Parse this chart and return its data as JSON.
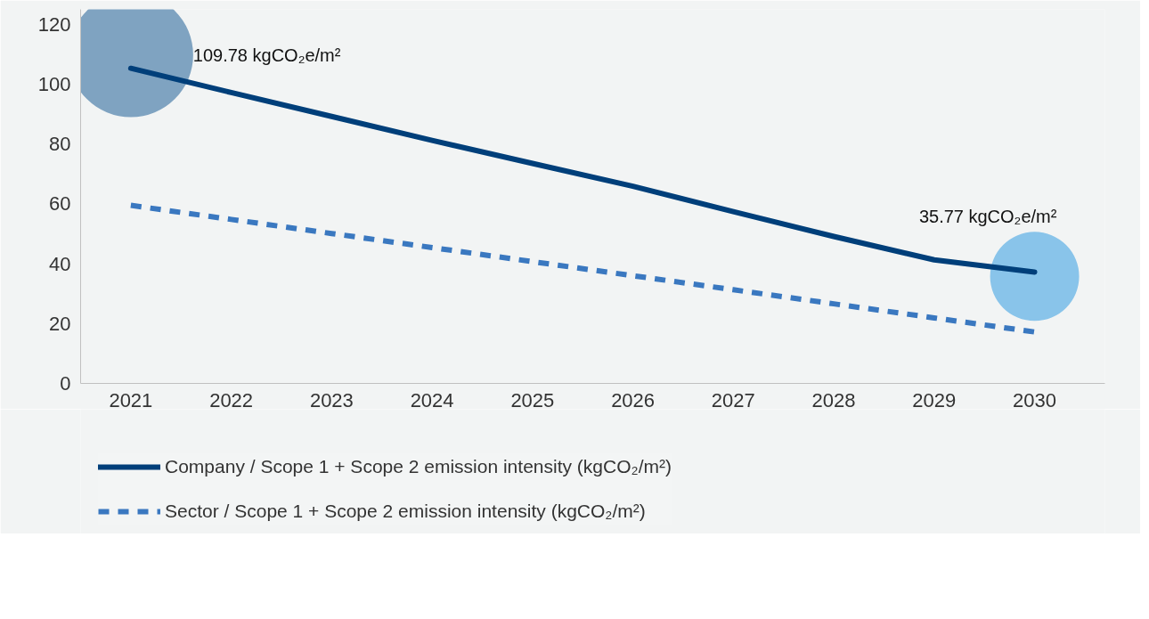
{
  "chart_data": {
    "type": "line",
    "categories": [
      "2021",
      "2022",
      "2023",
      "2024",
      "2025",
      "2026",
      "2027",
      "2028",
      "2029",
      "2030"
    ],
    "ylim": [
      0,
      125
    ],
    "yticks": [
      0,
      20,
      40,
      60,
      80,
      100,
      120
    ],
    "grid": false,
    "legend": "bottom",
    "series": [
      {
        "name": "Company / Scope 1 + Scope 2 emission intensity (kgCO₂/m²)",
        "color": "#003f7a",
        "line_style": "solid",
        "values": [
          105.3,
          97.2,
          89.2,
          81.2,
          73.5,
          65.9,
          57.4,
          49.1,
          41.3,
          37.2
        ]
      },
      {
        "name": "Sector / Scope 1 + Scope 2 emission intensity (kgCO₂/m²)",
        "color": "#3a78c0",
        "line_style": "dashed",
        "values": [
          59.5,
          54.8,
          50.1,
          45.4,
          40.7,
          36.0,
          31.3,
          26.6,
          21.9,
          17.2
        ]
      },
      {
        "type": "bubble",
        "colors": [
          "#7fa3c1",
          null,
          null,
          null,
          null,
          null,
          null,
          null,
          null,
          "#89c4ea"
        ],
        "values": [
          109.78,
          null,
          null,
          null,
          null,
          null,
          null,
          null,
          null,
          35.77
        ],
        "sizes": [
          1,
          null,
          null,
          null,
          null,
          null,
          null,
          null,
          null,
          0.51
        ],
        "value_labels": [
          "109.78 kgCO₂e/m²",
          null,
          null,
          null,
          null,
          null,
          null,
          null,
          null,
          "35.77 kgCO₂e/m²"
        ]
      }
    ]
  }
}
